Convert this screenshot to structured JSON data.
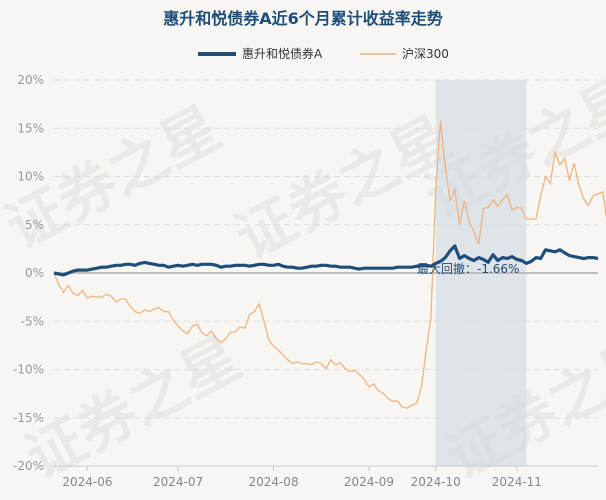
{
  "chart_data": {
    "type": "line",
    "title": "惠升和悦债券A近6个月累计收益率走势",
    "ylim": [
      -20,
      20
    ],
    "yticks": [
      -20,
      -15,
      -10,
      -5,
      0,
      5,
      10,
      15,
      20
    ],
    "ytick_labels": [
      "-20%",
      "-15%",
      "-10%",
      "-5%",
      "0%",
      "5%",
      "10%",
      "15%",
      "20%"
    ],
    "xticks": [
      "2024-06",
      "2024-07",
      "2024-08",
      "2024-09",
      "2024-10",
      "2024-11"
    ],
    "legend_position": "top",
    "grid": "horizontal dashed",
    "watermark": "证券之星",
    "annotation": {
      "text": "最大回撤：-1.66%",
      "shaded_start_index": 80,
      "shaded_end_index": 99
    },
    "series": [
      {
        "name": "惠升和悦债券A",
        "color": "#1f4e79",
        "values": [
          0.0,
          -0.1,
          -0.2,
          0.0,
          0.2,
          0.3,
          0.3,
          0.3,
          0.4,
          0.5,
          0.6,
          0.6,
          0.7,
          0.8,
          0.8,
          0.9,
          0.9,
          0.8,
          1.0,
          1.1,
          1.0,
          0.9,
          0.8,
          0.8,
          0.6,
          0.7,
          0.8,
          0.7,
          0.8,
          0.9,
          0.8,
          0.9,
          0.9,
          0.9,
          0.8,
          0.6,
          0.7,
          0.7,
          0.8,
          0.8,
          0.8,
          0.7,
          0.8,
          0.9,
          0.9,
          0.8,
          0.8,
          0.9,
          0.7,
          0.6,
          0.6,
          0.5,
          0.5,
          0.6,
          0.7,
          0.7,
          0.8,
          0.8,
          0.7,
          0.7,
          0.6,
          0.6,
          0.6,
          0.5,
          0.4,
          0.5,
          0.5,
          0.5,
          0.5,
          0.5,
          0.5,
          0.5,
          0.6,
          0.6,
          0.6,
          0.6,
          0.7,
          0.8,
          0.8,
          0.7,
          1.0,
          1.2,
          1.6,
          2.3,
          2.8,
          1.5,
          1.8,
          1.5,
          1.3,
          1.6,
          1.4,
          1.1,
          1.9,
          1.3,
          1.6,
          1.5,
          1.7,
          1.4,
          1.3,
          1.0,
          1.2,
          1.6,
          1.5,
          2.4,
          2.3,
          2.2,
          2.4,
          2.1,
          1.8,
          1.7,
          1.6,
          1.5,
          1.6,
          1.6,
          1.5
        ]
      },
      {
        "name": "沪深300",
        "color": "#f0b37e",
        "values": [
          0.0,
          -1.2,
          -2.0,
          -1.3,
          -2.1,
          -2.3,
          -1.8,
          -2.6,
          -2.4,
          -2.5,
          -2.5,
          -2.2,
          -2.4,
          -3.0,
          -2.7,
          -2.7,
          -3.5,
          -4.0,
          -4.2,
          -3.8,
          -4.0,
          -3.7,
          -3.6,
          -4.0,
          -4.0,
          -4.9,
          -5.5,
          -6.0,
          -6.3,
          -5.5,
          -5.3,
          -6.2,
          -6.5,
          -6.0,
          -6.8,
          -7.2,
          -6.8,
          -6.1,
          -6.1,
          -5.6,
          -5.7,
          -4.3,
          -4.0,
          -3.2,
          -5.0,
          -6.9,
          -7.6,
          -8.0,
          -8.5,
          -9.0,
          -9.4,
          -9.2,
          -9.4,
          -9.4,
          -9.5,
          -9.2,
          -9.4,
          -9.9,
          -9.0,
          -9.5,
          -9.3,
          -9.9,
          -10.2,
          -10.1,
          -10.5,
          -11.0,
          -11.8,
          -11.5,
          -12.2,
          -12.5,
          -13.0,
          -13.3,
          -13.3,
          -13.9,
          -14.0,
          -13.7,
          -13.5,
          -11.8,
          -8.0,
          -4.5,
          8.8,
          15.8,
          11.0,
          7.5,
          8.6,
          5.0,
          7.5,
          5.3,
          4.3,
          3.0,
          6.7,
          6.8,
          7.6,
          6.9,
          7.6,
          8.1,
          6.5,
          6.8,
          6.7,
          5.6,
          5.6,
          5.6,
          8.0,
          10.0,
          9.3,
          12.5,
          11.2,
          11.9,
          9.6,
          11.4,
          9.1,
          7.7,
          7.0,
          8.0,
          8.2,
          8.4,
          5.0
        ]
      }
    ]
  }
}
